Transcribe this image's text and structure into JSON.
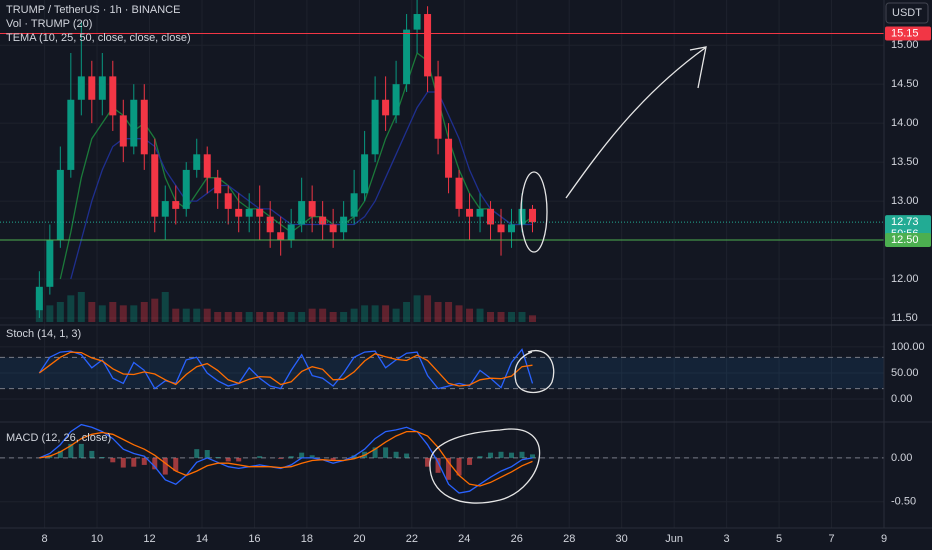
{
  "chart_data": [
    {
      "type": "candlestick",
      "title": "TRUMP / TetherUS · 1h · BINANCE",
      "currency": "USDT",
      "indicators": [
        "Vol · TRUMP (20)",
        "TEMA (10, 25, 50, close, close, close)"
      ],
      "up_color": "#089981",
      "down_color": "#f23645",
      "x": [
        7.8,
        8.2,
        8.6,
        9.0,
        9.4,
        9.8,
        10.2,
        10.6,
        11.0,
        11.4,
        11.8,
        12.2,
        12.6,
        13.0,
        13.4,
        13.8,
        14.2,
        14.6,
        15.0,
        15.4,
        15.8,
        16.2,
        16.6,
        17.0,
        17.4,
        17.8,
        18.2,
        18.6,
        19.0,
        19.4,
        19.8,
        20.2,
        20.6,
        21.0,
        21.4,
        21.8,
        22.2,
        22.6,
        23.0,
        23.4,
        23.8,
        24.2,
        24.6,
        25.0,
        25.4,
        25.8,
        26.2,
        26.6
      ],
      "open": [
        11.6,
        11.9,
        12.5,
        13.4,
        14.3,
        14.6,
        14.3,
        14.6,
        14.1,
        13.7,
        14.3,
        13.6,
        12.8,
        13.0,
        12.9,
        13.4,
        13.6,
        13.3,
        13.1,
        12.9,
        12.8,
        12.9,
        12.8,
        12.6,
        12.5,
        12.7,
        13.0,
        12.8,
        12.7,
        12.6,
        12.8,
        13.1,
        13.6,
        14.3,
        14.1,
        14.5,
        15.2,
        15.4,
        14.6,
        13.8,
        13.3,
        12.9,
        12.8,
        12.9,
        12.7,
        12.6,
        12.7,
        12.9
      ],
      "high": [
        12.1,
        12.7,
        13.7,
        14.9,
        15.3,
        14.8,
        14.9,
        14.8,
        14.3,
        14.5,
        14.5,
        13.8,
        13.2,
        13.2,
        13.5,
        13.8,
        13.7,
        13.4,
        13.2,
        13.1,
        13.1,
        13.2,
        13.0,
        12.8,
        12.9,
        13.3,
        13.2,
        13.0,
        12.9,
        13.0,
        13.4,
        13.9,
        14.6,
        14.6,
        14.8,
        15.4,
        15.6,
        15.5,
        14.8,
        14.0,
        13.4,
        13.1,
        13.1,
        13.0,
        12.9,
        12.9,
        13.1,
        12.95
      ],
      "low": [
        11.5,
        11.8,
        12.4,
        13.3,
        14.1,
        14.0,
        14.1,
        13.9,
        13.5,
        13.6,
        13.4,
        12.6,
        12.5,
        12.7,
        12.8,
        13.3,
        13.1,
        12.9,
        12.7,
        12.6,
        12.6,
        12.5,
        12.4,
        12.3,
        12.4,
        12.6,
        12.6,
        12.5,
        12.4,
        12.5,
        12.7,
        13.0,
        13.5,
        13.9,
        14.0,
        14.4,
        14.9,
        14.4,
        13.6,
        13.1,
        12.8,
        12.5,
        12.6,
        12.5,
        12.3,
        12.4,
        12.6,
        12.6
      ],
      "close": [
        11.9,
        12.5,
        13.4,
        14.3,
        14.6,
        14.3,
        14.6,
        14.1,
        13.7,
        14.3,
        13.6,
        12.8,
        13.0,
        12.9,
        13.4,
        13.6,
        13.3,
        13.1,
        12.9,
        12.8,
        12.9,
        12.8,
        12.6,
        12.5,
        12.7,
        13.0,
        12.8,
        12.7,
        12.6,
        12.8,
        13.1,
        13.6,
        14.3,
        14.1,
        14.5,
        15.2,
        15.4,
        14.6,
        13.8,
        13.3,
        12.9,
        12.8,
        12.9,
        12.7,
        12.6,
        12.7,
        12.9,
        12.73
      ],
      "volume": [
        9,
        5,
        6,
        8,
        9,
        6,
        5,
        6,
        5,
        5,
        6,
        7,
        9,
        4,
        4,
        4,
        4,
        3,
        3,
        3,
        3,
        3,
        3,
        3,
        3,
        3,
        4,
        4,
        3,
        3,
        4,
        5,
        5,
        5,
        4,
        6,
        8,
        8,
        6,
        6,
        5,
        4,
        4,
        3,
        3,
        3,
        3,
        2
      ],
      "tema": [
        {
          "color": "#1b7a3a",
          "values": [
            null,
            null,
            12.0,
            12.6,
            13.3,
            13.8,
            14.0,
            14.2,
            14.1,
            13.9,
            14.0,
            13.8,
            13.3,
            13.0,
            12.9,
            13.1,
            13.3,
            13.3,
            13.2,
            13.0,
            12.9,
            12.9,
            12.8,
            12.7,
            12.6,
            12.7,
            12.8,
            12.8,
            12.7,
            12.7,
            12.8,
            13.0,
            13.4,
            13.8,
            14.1,
            14.5,
            14.9,
            14.8,
            14.3,
            13.8,
            13.4,
            13.1,
            12.9,
            12.9,
            12.8,
            12.7,
            12.7,
            12.8
          ]
        },
        {
          "color": "#1f2f8f",
          "values": [
            null,
            null,
            null,
            12.0,
            12.5,
            13.0,
            13.4,
            13.7,
            13.8,
            13.8,
            13.8,
            13.7,
            13.4,
            13.2,
            13.0,
            13.0,
            13.1,
            13.2,
            13.2,
            13.1,
            13.0,
            12.9,
            12.9,
            12.8,
            12.7,
            12.7,
            12.7,
            12.7,
            12.7,
            12.7,
            12.7,
            12.8,
            13.0,
            13.3,
            13.6,
            13.9,
            14.2,
            14.4,
            14.4,
            14.1,
            13.8,
            13.4,
            13.1,
            12.9,
            12.8,
            12.7,
            12.7,
            12.7
          ]
        }
      ],
      "xlim": [
        6.3,
        40.0
      ],
      "xticks": [
        8,
        10,
        12,
        14,
        16,
        18,
        20,
        22,
        24,
        26,
        28,
        30,
        {
          "value": 32,
          "label": "Jun"
        },
        {
          "value": 34,
          "label": "3"
        },
        {
          "value": 36,
          "label": "5"
        },
        {
          "value": 38,
          "label": "7"
        },
        {
          "value": 40,
          "label": "9"
        }
      ],
      "ylim": [
        11.41,
        15.58
      ],
      "yticks": [
        {
          "value": 11.5,
          "label": "11.50"
        },
        {
          "value": 12,
          "label": "12.00"
        },
        {
          "value": 12.5,
          "label": "12.50"
        },
        {
          "value": 13,
          "label": "13.00"
        },
        {
          "value": 13.5,
          "label": "13.50"
        },
        {
          "value": 14,
          "label": "14.00"
        },
        {
          "value": 14.5,
          "label": "14.50"
        },
        {
          "value": 15,
          "label": "15.00"
        }
      ],
      "price_lines": [
        {
          "value": 15.15,
          "color": "#f23645"
        },
        {
          "value": 12.73,
          "countdown": "50:56",
          "color": "#22ab94"
        },
        {
          "value": 12.5,
          "label": "12.50",
          "color": "#4caf50"
        }
      ]
    },
    {
      "type": "stoch",
      "title": "Stoch (14, 1, 3)",
      "series": [
        {
          "color": "#2962ff",
          "values": [
            50,
            80,
            90,
            92,
            85,
            60,
            75,
            40,
            30,
            70,
            55,
            20,
            35,
            30,
            75,
            80,
            50,
            35,
            25,
            30,
            60,
            40,
            25,
            20,
            55,
            85,
            45,
            40,
            25,
            50,
            80,
            90,
            92,
            60,
            75,
            88,
            90,
            45,
            20,
            25,
            30,
            25,
            55,
            40,
            22,
            70,
            95,
            30
          ]
        },
        {
          "color": "#ff6d00",
          "values": [
            50,
            65,
            80,
            90,
            89,
            79,
            73,
            58,
            48,
            47,
            52,
            48,
            37,
            28,
            47,
            62,
            68,
            55,
            37,
            30,
            38,
            43,
            42,
            28,
            33,
            53,
            62,
            57,
            37,
            38,
            52,
            73,
            87,
            81,
            76,
            74,
            84,
            74,
            52,
            30,
            25,
            27,
            37,
            40,
            39,
            44,
            62,
            65
          ]
        }
      ],
      "band": [
        20,
        80
      ],
      "ylim": [
        -44,
        142
      ],
      "yticks": [
        {
          "value": 0,
          "label": "0.00"
        },
        {
          "value": 50,
          "label": "50.00"
        },
        {
          "value": 100,
          "label": "100.00"
        }
      ]
    },
    {
      "type": "macd",
      "title": "MACD (12, 26, close)",
      "series": [
        {
          "color": "#2962ff",
          "values": [
            0,
            0.05,
            0.15,
            0.3,
            0.38,
            0.35,
            0.3,
            0.22,
            0.1,
            0.05,
            0.02,
            -0.1,
            -0.25,
            -0.3,
            -0.2,
            -0.05,
            0.0,
            -0.05,
            -0.1,
            -0.12,
            -0.1,
            -0.08,
            -0.1,
            -0.12,
            -0.08,
            0.0,
            0.0,
            -0.02,
            -0.06,
            -0.03,
            0.02,
            0.1,
            0.22,
            0.3,
            0.32,
            0.35,
            0.3,
            0.15,
            -0.05,
            -0.3,
            -0.4,
            -0.38,
            -0.3,
            -0.22,
            -0.15,
            -0.1,
            -0.02,
            0.0
          ]
        },
        {
          "color": "#ff6d00",
          "values": [
            0,
            0.02,
            0.07,
            0.14,
            0.22,
            0.27,
            0.29,
            0.27,
            0.21,
            0.15,
            0.1,
            0.03,
            -0.06,
            -0.15,
            -0.2,
            -0.15,
            -0.09,
            -0.06,
            -0.06,
            -0.08,
            -0.1,
            -0.1,
            -0.1,
            -0.11,
            -0.1,
            -0.06,
            -0.03,
            -0.02,
            -0.03,
            -0.03,
            -0.01,
            0.03,
            0.1,
            0.18,
            0.25,
            0.3,
            0.3,
            0.25,
            0.12,
            -0.05,
            -0.2,
            -0.3,
            -0.32,
            -0.28,
            -0.22,
            -0.16,
            -0.09,
            -0.04
          ]
        }
      ],
      "histogram": [
        0,
        0.03,
        0.08,
        0.16,
        0.16,
        0.08,
        0.01,
        -0.05,
        -0.11,
        -0.1,
        -0.08,
        -0.13,
        -0.19,
        -0.15,
        0,
        0.1,
        0.09,
        0.01,
        -0.04,
        -0.04,
        0,
        0.02,
        0,
        -0.01,
        0.02,
        0.06,
        0.03,
        0,
        -0.03,
        0,
        0.03,
        0.07,
        0.12,
        0.12,
        0.07,
        0.05,
        0,
        -0.1,
        -0.17,
        -0.25,
        -0.2,
        -0.08,
        0.02,
        0.06,
        0.07,
        0.06,
        0.07,
        0.04
      ],
      "hist_colors": [
        "#26a69a",
        "#ff5252"
      ],
      "ylim": [
        -0.8,
        0.41
      ],
      "yticks": [
        {
          "value": -0.5,
          "label": "-0.50"
        },
        {
          "value": 0,
          "label": "0.00"
        }
      ]
    }
  ]
}
